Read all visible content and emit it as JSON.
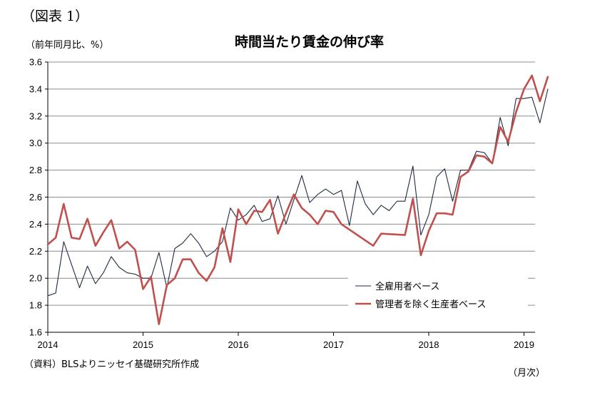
{
  "figure_label": "（図表 1）",
  "source_note": "（資料）BLSよりニッセイ基礎研究所作成",
  "chart_data": {
    "type": "line",
    "title": "時間当たり賃金の伸び率",
    "ylabel": "（前年同月比、%）",
    "xlabel": "（月次）",
    "ylim": [
      1.6,
      3.6
    ],
    "y_ticks": [
      "1.6",
      "1.8",
      "2.0",
      "2.2",
      "2.4",
      "2.6",
      "2.8",
      "3.0",
      "3.2",
      "3.4",
      "3.6"
    ],
    "x_ticks": [
      "2014",
      "2015",
      "2016",
      "2017",
      "2018",
      "2019"
    ],
    "x_range": [
      "2014-01",
      "2019-02"
    ],
    "grid": "horizontal",
    "legend_position": "bottom-right",
    "series": [
      {
        "name": "全雇用者ベース",
        "color": "#1f2a44",
        "x_start": "2014-01",
        "values": [
          1.87,
          1.89,
          2.27,
          2.1,
          1.93,
          2.09,
          1.96,
          2.04,
          2.16,
          2.08,
          2.04,
          2.03,
          2.0,
          2.0,
          2.19,
          1.93,
          2.22,
          2.26,
          2.33,
          2.26,
          2.16,
          2.2,
          2.27,
          2.52,
          2.43,
          2.47,
          2.54,
          2.42,
          2.44,
          2.61,
          2.4,
          2.58,
          2.76,
          2.56,
          2.62,
          2.66,
          2.62,
          2.65,
          2.39,
          2.72,
          2.55,
          2.47,
          2.54,
          2.5,
          2.57,
          2.57,
          2.83,
          2.32,
          2.47,
          2.75,
          2.81,
          2.57,
          2.8,
          2.8,
          2.94,
          2.93,
          2.85,
          3.19,
          2.98,
          3.33,
          3.33,
          3.34,
          3.15,
          3.4
        ]
      },
      {
        "name": "管理者を除く生産者ベース",
        "color": "#c0504d",
        "x_start": "2014-01",
        "values": [
          2.25,
          2.3,
          2.55,
          2.3,
          2.29,
          2.44,
          2.24,
          2.34,
          2.43,
          2.22,
          2.27,
          2.21,
          1.92,
          2.01,
          1.66,
          1.95,
          2.0,
          2.14,
          2.14,
          2.04,
          1.98,
          2.08,
          2.37,
          2.12,
          2.51,
          2.4,
          2.5,
          2.49,
          2.58,
          2.33,
          2.48,
          2.62,
          2.52,
          2.47,
          2.4,
          2.5,
          2.49,
          2.4,
          null,
          null,
          null,
          2.24,
          2.33,
          null,
          null,
          2.32,
          2.59,
          2.17,
          2.35,
          2.48,
          2.48,
          2.47,
          2.75,
          2.79,
          2.91,
          2.9,
          2.85,
          3.12,
          3.01,
          3.23,
          3.4,
          3.5,
          3.31,
          3.49
        ]
      }
    ]
  }
}
